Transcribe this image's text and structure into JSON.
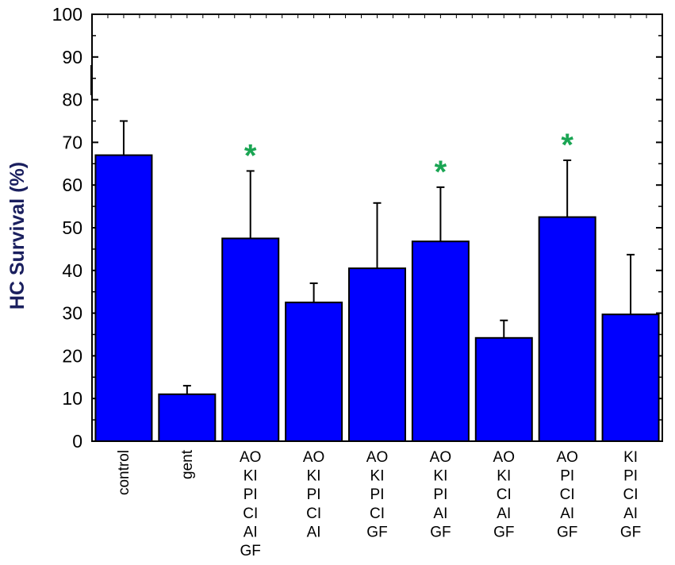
{
  "chart_data": {
    "type": "bar",
    "ylabel": "HC Survival (%)",
    "ylim": [
      0,
      100
    ],
    "yticks": [
      0,
      10,
      20,
      30,
      40,
      50,
      60,
      70,
      80,
      90,
      100
    ],
    "categories": [
      [
        "control"
      ],
      [
        "gent"
      ],
      [
        "AO",
        "KI",
        "PI",
        "CI",
        "AI",
        "GF"
      ],
      [
        "AO",
        "KI",
        "PI",
        "CI",
        "AI"
      ],
      [
        "AO",
        "KI",
        "PI",
        "CI",
        "GF"
      ],
      [
        "AO",
        "KI",
        "PI",
        "AI",
        "GF"
      ],
      [
        "AO",
        "KI",
        "CI",
        "AI",
        "GF"
      ],
      [
        "AO",
        "PI",
        "CI",
        "AI",
        "GF"
      ],
      [
        "KI",
        "PI",
        "CI",
        "AI",
        "GF"
      ]
    ],
    "values": [
      67,
      11,
      47.5,
      32.5,
      40.5,
      46.8,
      24.2,
      52.5,
      29.7
    ],
    "error_upper": [
      75,
      13,
      63.3,
      37,
      55.8,
      59.5,
      28.3,
      65.8,
      43.7
    ],
    "significant": [
      false,
      false,
      true,
      false,
      false,
      true,
      false,
      true,
      false
    ],
    "significance_marker": "*",
    "colors": {
      "bar_fill": "#0000ff",
      "bar_stroke": "#000000",
      "ylabel": "#1a1f5e",
      "star": "#1aa553"
    },
    "grid": false
  }
}
